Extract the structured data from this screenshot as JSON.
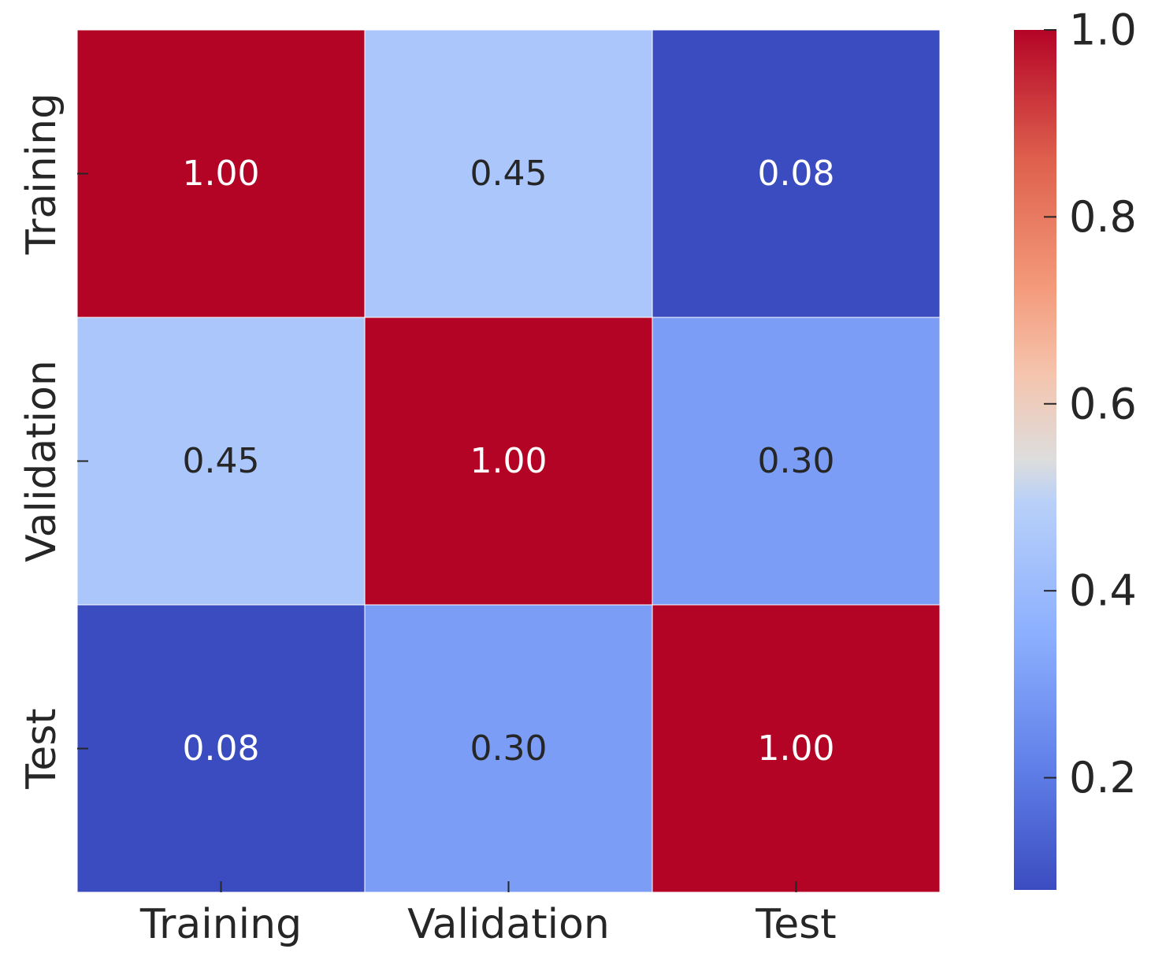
{
  "chart_data": {
    "type": "heatmap",
    "title": "",
    "xlabel": "",
    "ylabel": "",
    "x_categories": [
      "Training",
      "Validation",
      "Test"
    ],
    "y_categories": [
      "Training",
      "Validation",
      "Test"
    ],
    "values": [
      [
        1.0,
        0.45,
        0.08
      ],
      [
        0.45,
        1.0,
        0.3
      ],
      [
        0.08,
        0.3,
        1.0
      ]
    ],
    "annotations": [
      [
        "1.00",
        "0.45",
        "0.08"
      ],
      [
        "0.45",
        "1.00",
        "0.30"
      ],
      [
        "0.08",
        "0.30",
        "1.00"
      ]
    ],
    "colormap": "coolwarm",
    "color_range": [
      0.08,
      1.0
    ],
    "colorbar": {
      "ticks": [
        0.2,
        0.4,
        0.6,
        0.8,
        1.0
      ],
      "tick_labels": [
        "0.2",
        "0.4",
        "0.6",
        "0.8",
        "1.0"
      ],
      "placement": "right"
    },
    "colors": {
      "high": "#b40426",
      "low": "#3b4cc0",
      "mid": "#dddddd",
      "text_dark": "#262626",
      "text_light": "#ffffff",
      "cell_border": "#ffffff"
    }
  }
}
